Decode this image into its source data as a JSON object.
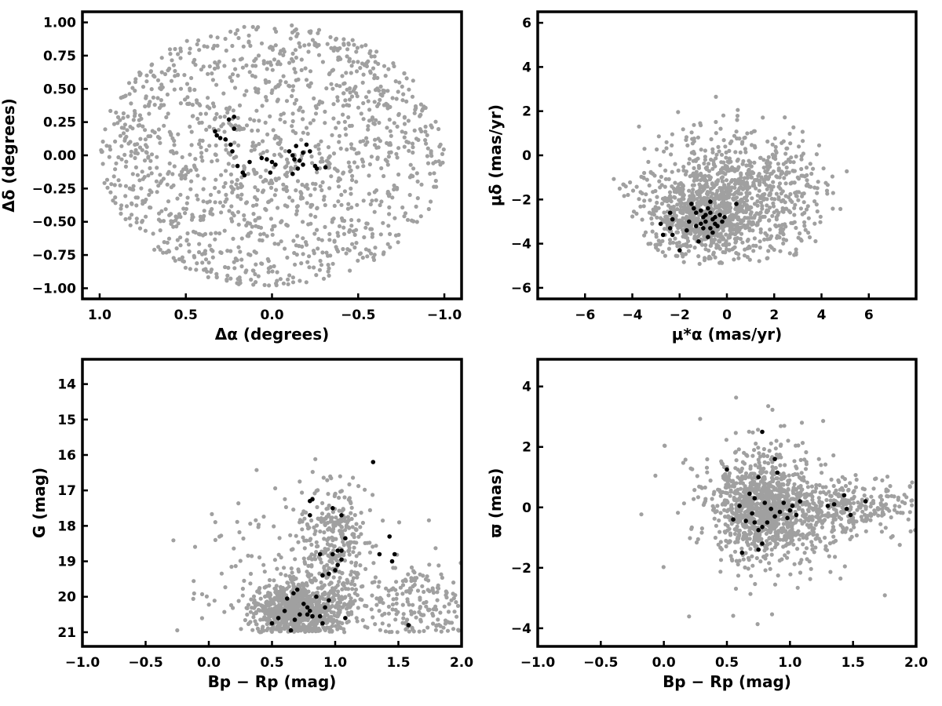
{
  "colors": {
    "field": "#a0a0a0",
    "member": "#000000"
  },
  "chart_data": [
    {
      "type": "scatter",
      "id": "sky",
      "xlabel": "Δα (degrees)",
      "ylabel": "Δδ (degrees)",
      "xlim": [
        1.1,
        -1.1
      ],
      "ylim": [
        -1.08,
        1.08
      ],
      "x_inverted": true,
      "xticks": [
        1.0,
        0.5,
        0.0,
        -0.5,
        -1.0
      ],
      "xtick_labels": [
        "1.0",
        "0.5",
        "0.0",
        "−0.5",
        "−1.0"
      ],
      "yticks": [
        1.0,
        0.75,
        0.5,
        0.25,
        0.0,
        -0.25,
        -0.5,
        -0.75,
        -1.0
      ],
      "ytick_labels": [
        "1.00",
        "0.75",
        "0.50",
        "0.25",
        "0.00",
        "−0.25",
        "−0.50",
        "−0.75",
        "−1.00"
      ],
      "grid": false,
      "series": [
        {
          "role": "field",
          "n_points": 1400,
          "distribution": "uniform ellipse",
          "center": [
            0,
            0
          ],
          "semi_axes": [
            1.0,
            1.0
          ]
        },
        {
          "role": "members",
          "points": [
            [
              0.33,
              0.18
            ],
            [
              0.32,
              0.15
            ],
            [
              0.3,
              0.13
            ],
            [
              0.27,
              0.12
            ],
            [
              0.25,
              0.27
            ],
            [
              0.22,
              0.29
            ],
            [
              0.22,
              0.2
            ],
            [
              0.24,
              0.08
            ],
            [
              0.23,
              0.03
            ],
            [
              0.2,
              -0.08
            ],
            [
              0.17,
              -0.13
            ],
            [
              0.16,
              -0.15
            ],
            [
              0.13,
              -0.05
            ],
            [
              0.06,
              -0.02
            ],
            [
              0.03,
              -0.03
            ],
            [
              0.0,
              -0.05
            ],
            [
              -0.02,
              -0.07
            ],
            [
              0.01,
              -0.13
            ],
            [
              -0.1,
              0.03
            ],
            [
              -0.12,
              0.0
            ],
            [
              -0.13,
              -0.03
            ],
            [
              -0.14,
              0.07
            ],
            [
              -0.16,
              -0.04
            ],
            [
              -0.18,
              -0.07
            ],
            [
              -0.2,
              0.08
            ],
            [
              -0.22,
              0.03
            ],
            [
              -0.25,
              -0.08
            ],
            [
              -0.26,
              -0.1
            ],
            [
              -0.31,
              -0.09
            ],
            [
              -0.12,
              -0.14
            ],
            [
              -0.15,
              -0.1
            ],
            [
              -0.18,
              0.02
            ]
          ]
        }
      ]
    },
    {
      "type": "scatter",
      "id": "proper-motion",
      "xlabel": "μ*α (mas/yr)",
      "ylabel": "μδ (mas/yr)",
      "xlim": [
        -8.0,
        8.0
      ],
      "ylim": [
        -6.5,
        6.5
      ],
      "xticks": [
        -6,
        -4,
        -2,
        0,
        2,
        4,
        6
      ],
      "xtick_labels": [
        "−6",
        "−4",
        "−2",
        "0",
        "2",
        "4",
        "6"
      ],
      "yticks": [
        6,
        4,
        2,
        0,
        -2,
        -4,
        -6
      ],
      "ytick_labels": [
        "6",
        "4",
        "2",
        "0",
        "−2",
        "−4",
        "−6"
      ],
      "grid": false,
      "series": [
        {
          "role": "field",
          "n_points": 1400,
          "distribution": "broad cloud",
          "center": [
            0.3,
            -1.8
          ],
          "spread": [
            2.0,
            1.6
          ]
        },
        {
          "role": "members",
          "points": [
            [
              -2.8,
              -3.1
            ],
            [
              -2.7,
              -3.6
            ],
            [
              -2.4,
              -2.6
            ],
            [
              -2.3,
              -2.9
            ],
            [
              -2.4,
              -3.3
            ],
            [
              -2.3,
              -3.6
            ],
            [
              -2.0,
              -4.3
            ],
            [
              -1.7,
              -3.4
            ],
            [
              -1.6,
              -3.0
            ],
            [
              -1.5,
              -2.2
            ],
            [
              -1.4,
              -2.4
            ],
            [
              -1.3,
              -2.6
            ],
            [
              -1.3,
              -3.2
            ],
            [
              -1.2,
              -3.9
            ],
            [
              -1.1,
              -3.1
            ],
            [
              -1.0,
              -2.8
            ],
            [
              -1.0,
              -3.3
            ],
            [
              -0.9,
              -2.7
            ],
            [
              -0.9,
              -3.0
            ],
            [
              -0.8,
              -3.7
            ],
            [
              -0.8,
              -2.4
            ],
            [
              -0.7,
              -2.1
            ],
            [
              -0.7,
              -2.6
            ],
            [
              -0.7,
              -3.3
            ],
            [
              -0.6,
              -3.5
            ],
            [
              -0.6,
              -2.9
            ],
            [
              -0.5,
              -2.8
            ],
            [
              -0.4,
              -3.2
            ],
            [
              -0.3,
              -2.7
            ],
            [
              -0.2,
              -3.0
            ],
            [
              -0.1,
              -2.8
            ],
            [
              0.4,
              -2.2
            ],
            [
              -1.1,
              -2.5
            ],
            [
              -0.5,
              -3.1
            ]
          ]
        }
      ]
    },
    {
      "type": "scatter",
      "id": "cmd-g",
      "xlabel": "Bp − Rp (mag)",
      "ylabel": "G (mag)",
      "xlim": [
        -1.0,
        2.0
      ],
      "ylim": [
        13.3,
        21.4
      ],
      "y_inverted": true,
      "xticks": [
        -1.0,
        -0.5,
        0.0,
        0.5,
        1.0,
        1.5,
        2.0
      ],
      "xtick_labels": [
        "−1.0",
        "−0.5",
        "0.0",
        "0.5",
        "1.0",
        "1.5",
        "2.0"
      ],
      "yticks": [
        21,
        20,
        19,
        18,
        17,
        16,
        15,
        14
      ],
      "ytick_labels": [
        "21",
        "20",
        "19",
        "18",
        "17",
        "16",
        "15",
        "14"
      ],
      "grid": false,
      "series": [
        {
          "role": "field",
          "n_points": 1400,
          "distribution": "colour-magnitude diagram",
          "center": [
            0.75,
            20.3
          ]
        },
        {
          "role": "members",
          "points": [
            [
              0.5,
              20.75
            ],
            [
              0.55,
              20.6
            ],
            [
              0.6,
              20.4
            ],
            [
              0.65,
              20.95
            ],
            [
              0.68,
              20.65
            ],
            [
              0.72,
              20.5
            ],
            [
              0.75,
              20.2
            ],
            [
              0.78,
              20.3
            ],
            [
              0.8,
              20.4
            ],
            [
              0.82,
              20.55
            ],
            [
              0.85,
              20.0
            ],
            [
              0.88,
              20.55
            ],
            [
              0.9,
              20.75
            ],
            [
              0.92,
              20.3
            ],
            [
              0.95,
              20.1
            ],
            [
              0.62,
              20.05
            ],
            [
              0.67,
              19.9
            ],
            [
              0.7,
              19.8
            ],
            [
              0.78,
              20.5
            ],
            [
              1.08,
              20.6
            ],
            [
              1.58,
              20.8
            ],
            [
              0.9,
              19.4
            ],
            [
              0.95,
              19.35
            ],
            [
              1.0,
              19.25
            ],
            [
              1.02,
              19.1
            ],
            [
              0.98,
              18.8
            ],
            [
              1.02,
              18.7
            ],
            [
              1.05,
              18.7
            ],
            [
              1.08,
              18.35
            ],
            [
              0.88,
              18.8
            ],
            [
              1.05,
              18.95
            ],
            [
              1.35,
              18.8
            ],
            [
              1.45,
              19.0
            ],
            [
              1.47,
              18.8
            ],
            [
              1.43,
              18.3
            ],
            [
              0.8,
              17.7
            ],
            [
              0.98,
              17.5
            ],
            [
              1.05,
              17.7
            ],
            [
              0.8,
              17.3
            ],
            [
              0.82,
              17.25
            ],
            [
              1.3,
              16.2
            ]
          ]
        }
      ]
    },
    {
      "type": "scatter",
      "id": "parallax",
      "xlabel": "Bp − Rp (mag)",
      "ylabel": "ϖ (mas)",
      "xlim": [
        -1.0,
        2.0
      ],
      "ylim": [
        -4.6,
        4.9
      ],
      "xticks": [
        -1.0,
        -0.5,
        0.0,
        0.5,
        1.0,
        1.5,
        2.0
      ],
      "xtick_labels": [
        "−1.0",
        "−0.5",
        "0.0",
        "0.5",
        "1.0",
        "1.5",
        "2.0"
      ],
      "yticks": [
        4,
        2,
        0,
        -2,
        -4
      ],
      "ytick_labels": [
        "4",
        "2",
        "0",
        "−2",
        "−4"
      ],
      "grid": false,
      "series": [
        {
          "role": "field",
          "n_points": 1400,
          "distribution": "parallax cloud",
          "center": [
            0.75,
            0.0
          ]
        },
        {
          "role": "members",
          "points": [
            [
              0.5,
              1.25
            ],
            [
              0.55,
              -0.4
            ],
            [
              0.62,
              -1.5
            ],
            [
              0.65,
              -0.45
            ],
            [
              0.68,
              0.45
            ],
            [
              0.7,
              -0.2
            ],
            [
              0.72,
              0.3
            ],
            [
              0.75,
              1.0
            ],
            [
              0.75,
              -0.75
            ],
            [
              0.78,
              -0.65
            ],
            [
              0.8,
              0.15
            ],
            [
              0.82,
              -0.5
            ],
            [
              0.85,
              -0.05
            ],
            [
              0.88,
              -0.3
            ],
            [
              0.9,
              1.15
            ],
            [
              0.92,
              -0.15
            ],
            [
              0.95,
              0.15
            ],
            [
              0.98,
              -0.35
            ],
            [
              1.0,
              -0.1
            ],
            [
              1.02,
              0.05
            ],
            [
              1.05,
              -0.25
            ],
            [
              1.08,
              0.2
            ],
            [
              0.78,
              2.5
            ],
            [
              0.88,
              1.6
            ],
            [
              0.78,
              -1.2
            ],
            [
              0.75,
              -1.4
            ],
            [
              1.3,
              0.05
            ],
            [
              1.35,
              0.1
            ],
            [
              1.43,
              0.4
            ],
            [
              1.45,
              -0.05
            ],
            [
              1.48,
              -0.25
            ],
            [
              1.6,
              0.2
            ],
            [
              0.72,
              -0.5
            ],
            [
              0.6,
              0.05
            ]
          ]
        }
      ]
    }
  ]
}
